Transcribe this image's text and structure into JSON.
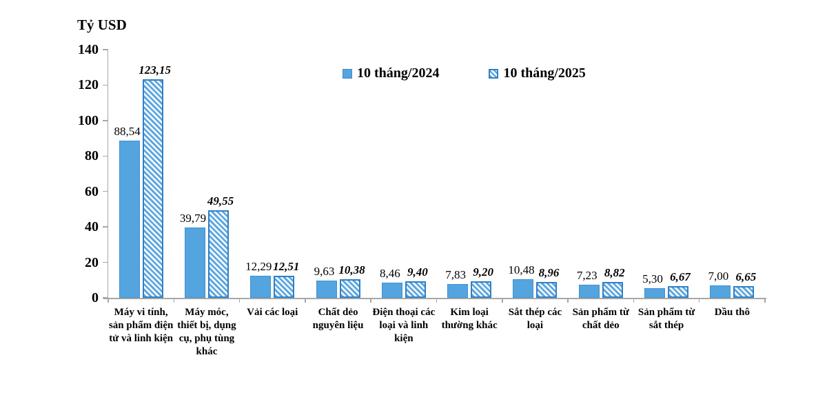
{
  "chart": {
    "colors": {
      "bar_2024_fill": "#54A4DF",
      "bar_2024_border": "#4090D2",
      "bar_2025_stripe": "#5FA8E0",
      "bar_2025_border": "#2F7FC6",
      "axis": "#A6A6A6",
      "text": "#000000"
    }
  },
  "chart_data": {
    "type": "bar",
    "title": "",
    "ylabel": "Tỷ USD",
    "xlabel": "",
    "ylim": [
      0,
      140
    ],
    "yticks": [
      0,
      20,
      40,
      60,
      80,
      100,
      120,
      140
    ],
    "grid": false,
    "legend_position": "top-center",
    "categories": [
      "Máy vi tính, sản phẩm điện tử và linh kiện",
      "Máy móc, thiết bị, dụng cụ, phụ tùng khác",
      "Vải các loại",
      "Chất dẻo nguyên liệu",
      "Điện thoại các loại và linh kiện",
      "Kim loại thường khác",
      "Sắt thép các loại",
      "Sản phẩm từ chất dẻo",
      "Sản phẩm từ sắt thép",
      "Dầu thô"
    ],
    "series": [
      {
        "name": "10 tháng/2024",
        "style": "solid",
        "values": [
          88.54,
          39.79,
          12.29,
          9.63,
          8.46,
          7.83,
          10.48,
          7.23,
          5.3,
          7.0
        ],
        "labels": [
          "88,54",
          "39,79",
          "12,29",
          "9,63",
          "8,46",
          "7,83",
          "10,48",
          "7,23",
          "5,30",
          "7,00"
        ]
      },
      {
        "name": "10 tháng/2025",
        "style": "hatched",
        "values": [
          123.15,
          49.55,
          12.51,
          10.38,
          9.4,
          9.2,
          8.96,
          8.82,
          6.67,
          6.65
        ],
        "labels": [
          "123,15",
          "49,55",
          "12,51",
          "10,38",
          "9,40",
          "9,20",
          "8,96",
          "8,82",
          "6,67",
          "6,65"
        ]
      }
    ]
  }
}
